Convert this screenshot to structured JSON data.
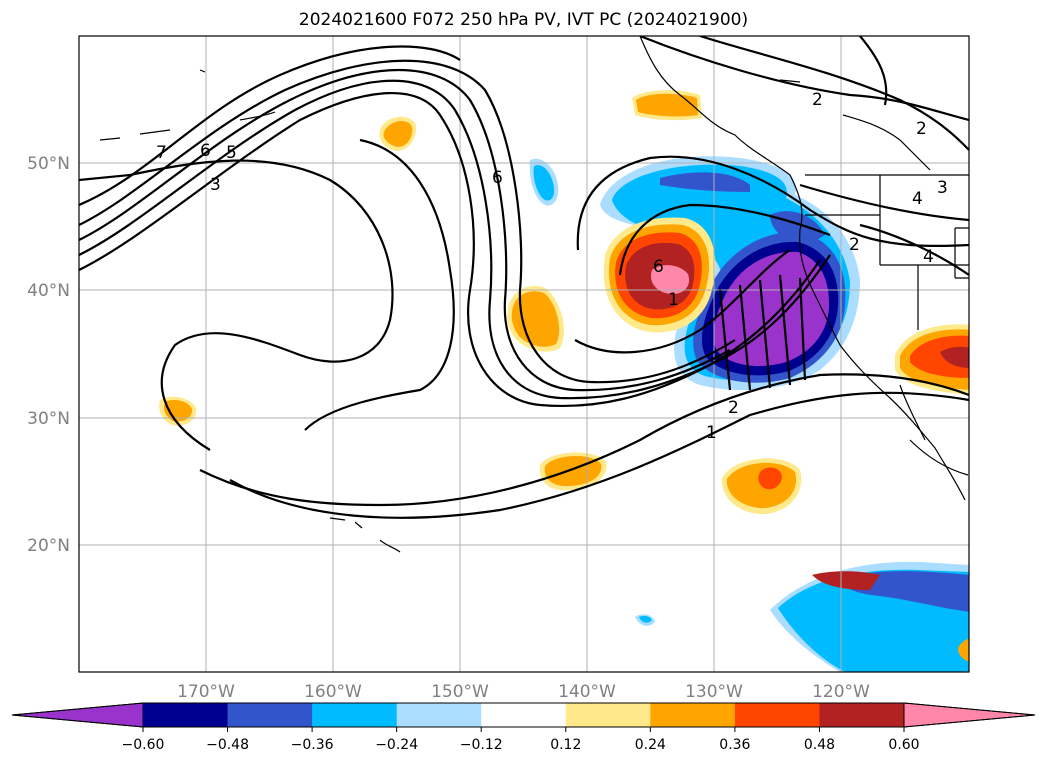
{
  "title": "2024021600 F072 250 hPa PV, IVT PC (2024021900)",
  "longitude_labels": [
    "170°W",
    "160°W",
    "150°W",
    "140°W",
    "130°W",
    "120°W"
  ],
  "latitude_labels": [
    "50°N",
    "40°N",
    "30°N",
    "20°N"
  ],
  "extent": {
    "lon_min": -180,
    "lon_max": -110,
    "lat_min": 10,
    "lat_max": 60
  },
  "gridlines": true,
  "colorbar": {
    "orientation": "horizontal",
    "extend": "both",
    "tick_labels": [
      "−0.60",
      "−0.48",
      "−0.36",
      "−0.24",
      "−0.12",
      "0.12",
      "0.24",
      "0.36",
      "0.48",
      "0.60"
    ],
    "colors": [
      "#9933cc",
      "#000090",
      "#3355cc",
      "#00bbff",
      "#aaddff",
      "#ffffff",
      "#ffe98a",
      "#ffa500",
      "#ff4500",
      "#b22222",
      "#ff88aa"
    ]
  },
  "pv_contour_labels": [
    "7",
    "6",
    "5",
    "3",
    "6",
    "6",
    "1",
    "2",
    "1",
    "2",
    "2",
    "3",
    "4",
    "4",
    "2"
  ]
}
